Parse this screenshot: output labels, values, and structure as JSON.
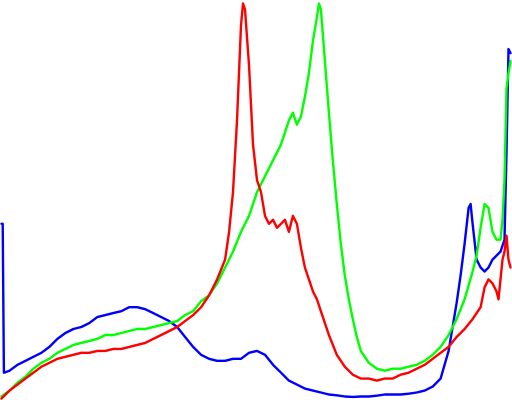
{
  "chart_data": {
    "type": "line",
    "title": "",
    "xlabel": "",
    "ylabel": "",
    "xlim": [
      0,
      255
    ],
    "ylim": [
      0,
      1
    ],
    "grid": false,
    "legend": "none",
    "series": [
      {
        "color": "#0000ff",
        "points": [
          [
            0,
            0.44
          ],
          [
            0.6,
            0.44
          ],
          [
            1.2,
            0.065
          ],
          [
            4,
            0.07
          ],
          [
            8,
            0.085
          ],
          [
            12,
            0.095
          ],
          [
            16,
            0.105
          ],
          [
            20,
            0.115
          ],
          [
            24,
            0.13
          ],
          [
            28,
            0.15
          ],
          [
            32,
            0.165
          ],
          [
            36,
            0.175
          ],
          [
            40,
            0.18
          ],
          [
            44,
            0.19
          ],
          [
            48,
            0.205
          ],
          [
            52,
            0.21
          ],
          [
            56,
            0.215
          ],
          [
            60,
            0.22
          ],
          [
            64,
            0.23
          ],
          [
            68,
            0.23
          ],
          [
            72,
            0.225
          ],
          [
            76,
            0.215
          ],
          [
            80,
            0.205
          ],
          [
            84,
            0.195
          ],
          [
            88,
            0.18
          ],
          [
            92,
            0.155
          ],
          [
            96,
            0.13
          ],
          [
            100,
            0.11
          ],
          [
            104,
            0.1
          ],
          [
            108,
            0.095
          ],
          [
            112,
            0.095
          ],
          [
            116,
            0.1
          ],
          [
            120,
            0.1
          ],
          [
            124,
            0.115
          ],
          [
            128,
            0.12
          ],
          [
            132,
            0.11
          ],
          [
            136,
            0.085
          ],
          [
            140,
            0.065
          ],
          [
            144,
            0.045
          ],
          [
            148,
            0.035
          ],
          [
            152,
            0.025
          ],
          [
            156,
            0.02
          ],
          [
            160,
            0.015
          ],
          [
            164,
            0.01
          ],
          [
            168,
            0.008
          ],
          [
            172,
            0.005
          ],
          [
            176,
            0.004
          ],
          [
            180,
            0.005
          ],
          [
            184,
            0.005
          ],
          [
            188,
            0.007
          ],
          [
            192,
            0.01
          ],
          [
            196,
            0.01
          ],
          [
            200,
            0.01
          ],
          [
            204,
            0.012
          ],
          [
            208,
            0.015
          ],
          [
            212,
            0.02
          ],
          [
            216,
            0.03
          ],
          [
            220,
            0.05
          ],
          [
            224,
            0.12
          ],
          [
            228,
            0.24
          ],
          [
            230,
            0.31
          ],
          [
            232,
            0.39
          ],
          [
            234,
            0.48
          ],
          [
            235,
            0.49
          ],
          [
            236,
            0.44
          ],
          [
            238,
            0.35
          ],
          [
            240,
            0.33
          ],
          [
            242,
            0.32
          ],
          [
            244,
            0.33
          ],
          [
            246,
            0.35
          ],
          [
            248,
            0.36
          ],
          [
            250,
            0.37
          ],
          [
            252,
            0.4
          ],
          [
            253,
            0.62
          ],
          [
            254,
            0.88
          ],
          [
            255,
            0.87
          ]
        ]
      },
      {
        "color": "#00ff00",
        "points": [
          [
            0,
            0.005
          ],
          [
            4,
            0.02
          ],
          [
            8,
            0.04
          ],
          [
            12,
            0.055
          ],
          [
            16,
            0.075
          ],
          [
            20,
            0.09
          ],
          [
            24,
            0.1
          ],
          [
            28,
            0.115
          ],
          [
            32,
            0.125
          ],
          [
            36,
            0.135
          ],
          [
            40,
            0.14
          ],
          [
            44,
            0.145
          ],
          [
            48,
            0.15
          ],
          [
            52,
            0.16
          ],
          [
            56,
            0.16
          ],
          [
            60,
            0.165
          ],
          [
            64,
            0.17
          ],
          [
            68,
            0.175
          ],
          [
            72,
            0.175
          ],
          [
            76,
            0.18
          ],
          [
            80,
            0.185
          ],
          [
            84,
            0.19
          ],
          [
            88,
            0.195
          ],
          [
            92,
            0.21
          ],
          [
            96,
            0.22
          ],
          [
            100,
            0.245
          ],
          [
            104,
            0.26
          ],
          [
            108,
            0.29
          ],
          [
            112,
            0.33
          ],
          [
            116,
            0.37
          ],
          [
            120,
            0.42
          ],
          [
            124,
            0.46
          ],
          [
            128,
            0.52
          ],
          [
            132,
            0.56
          ],
          [
            136,
            0.6
          ],
          [
            140,
            0.64
          ],
          [
            144,
            0.7
          ],
          [
            146,
            0.72
          ],
          [
            148,
            0.69
          ],
          [
            150,
            0.71
          ],
          [
            152,
            0.76
          ],
          [
            154,
            0.82
          ],
          [
            156,
            0.9
          ],
          [
            158,
            0.96
          ],
          [
            159,
            0.995
          ],
          [
            160,
            0.98
          ],
          [
            162,
            0.85
          ],
          [
            164,
            0.72
          ],
          [
            166,
            0.6
          ],
          [
            168,
            0.49
          ],
          [
            170,
            0.39
          ],
          [
            172,
            0.31
          ],
          [
            174,
            0.25
          ],
          [
            176,
            0.2
          ],
          [
            178,
            0.155
          ],
          [
            180,
            0.12
          ],
          [
            184,
            0.09
          ],
          [
            188,
            0.075
          ],
          [
            192,
            0.07
          ],
          [
            196,
            0.075
          ],
          [
            200,
            0.075
          ],
          [
            204,
            0.08
          ],
          [
            208,
            0.085
          ],
          [
            212,
            0.095
          ],
          [
            216,
            0.11
          ],
          [
            220,
            0.13
          ],
          [
            224,
            0.16
          ],
          [
            228,
            0.2
          ],
          [
            232,
            0.25
          ],
          [
            236,
            0.32
          ],
          [
            238,
            0.36
          ],
          [
            240,
            0.43
          ],
          [
            242,
            0.49
          ],
          [
            244,
            0.48
          ],
          [
            246,
            0.42
          ],
          [
            248,
            0.4
          ],
          [
            250,
            0.4
          ],
          [
            251,
            0.45
          ],
          [
            252,
            0.55
          ],
          [
            253,
            0.78
          ],
          [
            254,
            0.82
          ],
          [
            255,
            0.85
          ]
        ]
      },
      {
        "color": "#ff0000",
        "points": [
          [
            0,
            0.0
          ],
          [
            4,
            0.02
          ],
          [
            8,
            0.035
          ],
          [
            12,
            0.05
          ],
          [
            16,
            0.065
          ],
          [
            20,
            0.08
          ],
          [
            24,
            0.09
          ],
          [
            28,
            0.1
          ],
          [
            32,
            0.105
          ],
          [
            36,
            0.11
          ],
          [
            40,
            0.115
          ],
          [
            44,
            0.115
          ],
          [
            48,
            0.12
          ],
          [
            52,
            0.12
          ],
          [
            56,
            0.125
          ],
          [
            60,
            0.125
          ],
          [
            64,
            0.13
          ],
          [
            68,
            0.135
          ],
          [
            72,
            0.14
          ],
          [
            76,
            0.15
          ],
          [
            80,
            0.16
          ],
          [
            84,
            0.17
          ],
          [
            88,
            0.18
          ],
          [
            92,
            0.195
          ],
          [
            96,
            0.21
          ],
          [
            100,
            0.23
          ],
          [
            104,
            0.26
          ],
          [
            108,
            0.3
          ],
          [
            112,
            0.35
          ],
          [
            114,
            0.42
          ],
          [
            116,
            0.52
          ],
          [
            118,
            0.7
          ],
          [
            120,
            0.94
          ],
          [
            121,
            0.995
          ],
          [
            122,
            0.98
          ],
          [
            124,
            0.84
          ],
          [
            126,
            0.64
          ],
          [
            128,
            0.55
          ],
          [
            130,
            0.52
          ],
          [
            132,
            0.46
          ],
          [
            134,
            0.44
          ],
          [
            136,
            0.45
          ],
          [
            138,
            0.43
          ],
          [
            140,
            0.44
          ],
          [
            142,
            0.45
          ],
          [
            144,
            0.42
          ],
          [
            146,
            0.46
          ],
          [
            148,
            0.44
          ],
          [
            150,
            0.38
          ],
          [
            152,
            0.33
          ],
          [
            154,
            0.3
          ],
          [
            156,
            0.27
          ],
          [
            158,
            0.25
          ],
          [
            160,
            0.22
          ],
          [
            164,
            0.16
          ],
          [
            168,
            0.11
          ],
          [
            172,
            0.08
          ],
          [
            176,
            0.06
          ],
          [
            180,
            0.05
          ],
          [
            184,
            0.05
          ],
          [
            188,
            0.045
          ],
          [
            192,
            0.05
          ],
          [
            196,
            0.05
          ],
          [
            200,
            0.06
          ],
          [
            204,
            0.065
          ],
          [
            208,
            0.075
          ],
          [
            212,
            0.085
          ],
          [
            216,
            0.1
          ],
          [
            220,
            0.115
          ],
          [
            224,
            0.13
          ],
          [
            228,
            0.155
          ],
          [
            232,
            0.175
          ],
          [
            236,
            0.2
          ],
          [
            240,
            0.23
          ],
          [
            242,
            0.28
          ],
          [
            244,
            0.3
          ],
          [
            246,
            0.29
          ],
          [
            248,
            0.27
          ],
          [
            249,
            0.25
          ],
          [
            250,
            0.3
          ],
          [
            251,
            0.35
          ],
          [
            252,
            0.37
          ],
          [
            253,
            0.41
          ],
          [
            254,
            0.35
          ],
          [
            255,
            0.33
          ]
        ]
      }
    ]
  }
}
